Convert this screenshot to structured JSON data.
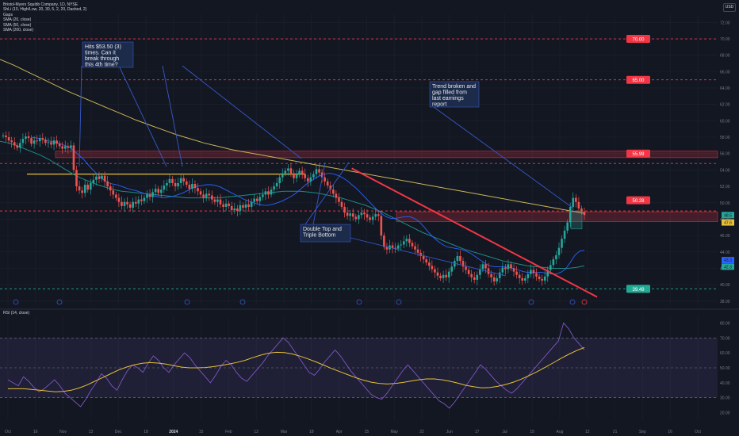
{
  "legend": {
    "title": "Bristol-Myers Squibb Company, 1D, NYSE",
    "line1": "ShLi (10, High/Low, 20, 30, 5, 2, 20, Dashed, 2)",
    "line2": "Gaps",
    "line3": "SMA (20, close)",
    "line4": "SMA (50, close)",
    "line5": "SMA (200, close)"
  },
  "rsi_legend": "RSI (14, close)",
  "currency": "USD",
  "colors": {
    "background": "#131722",
    "up": "#26a69a",
    "down": "#ef5350",
    "sma20": "#2962ff",
    "sma50": "#1f8a86",
    "sma200": "#c9b458",
    "trendline": "#f23645",
    "annotation_line": "#3658c9",
    "support": "#22ab94",
    "resistance": "#f23645",
    "rsi": "#7e57c2",
    "rsi_ma": "#e7c03a"
  },
  "annotations": [
    {
      "text": "Hits  $53.50 (3) times. Can it break through this 4th time?"
    },
    {
      "text": "Trend broken and gap filled from last earnings report"
    },
    {
      "text": "Double Top and Triple Bottom"
    }
  ],
  "chart_data": [
    {
      "type": "candlestick",
      "title": "Bristol-Myers Squibb Company, 1D, NYSE",
      "x_ticks": [
        "Oct",
        "16",
        "Nov",
        "13",
        "Dec",
        "18",
        "2024",
        "15",
        "Feb",
        "12",
        "Mar",
        "18",
        "Apr",
        "15",
        "May",
        "22",
        "Jun",
        "17",
        "Jul",
        "15",
        "Aug",
        "12",
        "21",
        "Sep",
        "16",
        "Oct"
      ],
      "y_ticks": [
        38.0,
        40.0,
        42.0,
        44.0,
        46.0,
        48.0,
        50.0,
        52.0,
        54.0,
        56.0,
        58.0,
        60.0,
        62.0,
        64.0,
        66.0,
        68.0,
        70.0,
        72.0
      ],
      "ylim": [
        37.5,
        73.0
      ],
      "levels": [
        {
          "price": 70.0,
          "style": "dashed",
          "color": "#f23645"
        },
        {
          "price": 65.0,
          "style": "dashed",
          "color": "#f23645"
        },
        {
          "price": 54.8,
          "style": "dashed",
          "color": "#f23645"
        },
        {
          "price": 49.0,
          "style": "dashed",
          "color": "#f23645"
        },
        {
          "price": 39.5,
          "style": "dashed",
          "color": "#22ab94"
        },
        {
          "price": 53.5,
          "style": "solid",
          "color": "#e7c03a"
        }
      ],
      "gap_zones": [
        {
          "from": 55.5,
          "to": 56.3
        },
        {
          "from": 47.7,
          "to": 48.9
        }
      ],
      "price_markers": [
        {
          "price": 70.0,
          "text": "70.00"
        },
        {
          "price": 65.0,
          "text": "65.00"
        },
        {
          "price": 56.0,
          "text": "55.99"
        },
        {
          "price": 50.3,
          "text": "50.28"
        },
        {
          "price": 39.5,
          "text": "39.49"
        }
      ],
      "axis_badges": [
        {
          "price": 48.5,
          "text": "48.5",
          "color": "#26a69a"
        },
        {
          "price": 47.6,
          "text": "47.6",
          "color": "#e7c03a"
        },
        {
          "price": 43.0,
          "text": "43.3",
          "color": "#2962ff"
        },
        {
          "price": 42.2,
          "text": "42.3",
          "color": "#26a69a"
        }
      ],
      "closes": [
        58.2,
        58.0,
        57.6,
        57.4,
        57.0,
        56.7,
        57.3,
        57.8,
        58.1,
        57.9,
        57.2,
        57.6,
        57.5,
        57.9,
        57.7,
        57.3,
        57.4,
        57.1,
        57.6,
        57.2,
        56.9,
        56.6,
        56.9,
        56.7,
        57.0,
        54.0,
        52.0,
        51.5,
        51.2,
        52.2,
        51.6,
        52.4,
        52.8,
        53.2,
        52.9,
        53.3,
        52.6,
        52.0,
        51.5,
        51.0,
        50.6,
        50.1,
        49.6,
        50.1,
        49.8,
        49.4,
        50.1,
        49.9,
        50.4,
        50.2,
        50.6,
        51.0,
        50.7,
        51.3,
        51.7,
        51.2,
        51.6,
        52.1,
        52.4,
        52.9,
        52.4,
        52.0,
        52.4,
        53.0,
        52.6,
        52.2,
        51.7,
        52.3,
        51.8,
        51.4,
        51.0,
        50.6,
        51.1,
        50.9,
        50.4,
        50.1,
        50.4,
        49.8,
        49.5,
        49.9,
        49.6,
        49.1,
        49.3,
        49.0,
        49.7,
        49.4,
        49.8,
        49.5,
        50.1,
        50.5,
        50.2,
        50.7,
        51.0,
        51.4,
        51.0,
        51.6,
        52.0,
        52.4,
        53.1,
        53.6,
        53.9,
        54.2,
        53.6,
        53.0,
        53.4,
        53.9,
        53.5,
        53.0,
        52.6,
        53.1,
        53.5,
        54.1,
        53.7,
        53.1,
        52.6,
        52.1,
        51.6,
        51.1,
        50.6,
        50.1,
        49.5,
        48.8,
        48.4,
        48.7,
        48.3,
        48.0,
        48.5,
        48.8,
        48.6,
        48.2,
        47.9,
        48.3,
        48.6,
        48.4,
        46.0,
        44.6,
        44.3,
        44.8,
        44.5,
        44.4,
        44.8,
        44.9,
        45.3,
        45.6,
        45.1,
        44.7,
        44.3,
        43.9,
        43.5,
        43.1,
        42.7,
        42.3,
        41.9,
        41.5,
        41.1,
        40.8,
        41.2,
        40.9,
        41.6,
        42.2,
        42.9,
        43.5,
        42.9,
        42.2,
        41.8,
        41.3,
        40.9,
        40.6,
        41.2,
        41.9,
        42.5,
        42.0,
        41.3,
        40.9,
        40.4,
        40.8,
        41.5,
        42.1,
        41.9,
        42.5,
        42.0,
        41.6,
        41.2,
        40.8,
        40.5,
        40.8,
        41.3,
        41.8,
        41.4,
        41.0,
        40.7,
        40.5,
        41.0,
        41.8,
        42.4,
        43.1,
        43.6,
        44.5,
        45.6,
        46.6,
        47.6,
        49.5,
        50.6,
        50.1,
        49.3,
        48.9,
        48.5
      ],
      "sma20": [
        58.0,
        57.9,
        57.8,
        57.6,
        57.5,
        57.4,
        57.2,
        57.0,
        56.8,
        56.3,
        55.8,
        55.3,
        54.6,
        54.0,
        53.4,
        52.9,
        52.5,
        52.3,
        52.2,
        52.0,
        51.8,
        51.6,
        51.5,
        51.3,
        51.1,
        50.9,
        50.8,
        50.7,
        50.6,
        50.7,
        50.8,
        51.0,
        51.2,
        51.5,
        51.8,
        52.0,
        52.1,
        52.2,
        52.2,
        52.1,
        51.9,
        51.6,
        51.3,
        51.0,
        50.7,
        50.4,
        50.2,
        50.0,
        49.8,
        49.7,
        49.7,
        49.8,
        50.0,
        50.2,
        50.5,
        50.8,
        51.2,
        51.7,
        52.2,
        52.6,
        53.0,
        53.3,
        53.5,
        53.6,
        53.5,
        53.3,
        53.0,
        52.6,
        52.1,
        51.6,
        51.0,
        50.4,
        49.8,
        49.2,
        48.7,
        48.3,
        48.1,
        48.1,
        48.2,
        48.3,
        48.3,
        48.1,
        47.7,
        47.1,
        46.4,
        45.8,
        45.3,
        44.9,
        44.6,
        44.5,
        44.4,
        44.3,
        44.1,
        43.8,
        43.4,
        43.0,
        42.6,
        42.3,
        42.2,
        42.2,
        42.2,
        42.1,
        42.0,
        41.8,
        41.6,
        41.5,
        41.5,
        41.5,
        41.5,
        41.4,
        41.3,
        41.3,
        41.5,
        41.9,
        42.7,
        43.6,
        44.1,
        44.2
      ],
      "sma50": [
        57.5,
        57.3,
        57.0,
        56.6,
        56.2,
        55.8,
        55.3,
        54.7,
        54.1,
        53.5,
        53.0,
        52.6,
        52.2,
        51.9,
        51.6,
        51.4,
        51.3,
        51.2,
        51.1,
        51.0,
        50.9,
        50.8,
        50.7,
        50.6,
        50.6,
        50.6,
        50.6,
        50.6,
        50.7,
        50.8,
        50.9,
        51.0,
        51.1,
        51.2,
        51.3,
        51.4,
        51.4,
        51.4,
        51.3,
        51.2,
        51.0,
        50.8,
        50.6,
        50.3,
        50.0,
        49.7,
        49.3,
        48.9,
        48.4,
        47.9,
        47.4,
        46.9,
        46.4,
        46.0,
        45.6,
        45.2,
        44.8,
        44.4,
        44.1,
        43.8,
        43.5,
        43.2,
        42.9,
        42.7,
        42.5,
        42.3,
        42.2,
        42.1,
        42.0,
        42.0,
        42.0,
        42.1,
        42.3
      ],
      "sma200": [
        67.5,
        66.8,
        66.0,
        65.2,
        64.4,
        63.6,
        62.9,
        62.2,
        61.5,
        60.8,
        60.1,
        59.5,
        58.9,
        58.3,
        57.8,
        57.3,
        56.9,
        56.5,
        56.2,
        55.9,
        55.6,
        55.3,
        55.0,
        54.7,
        54.4,
        54.1,
        53.8,
        53.5,
        53.2,
        52.9,
        52.6,
        52.3,
        52.0,
        51.7,
        51.4,
        51.1,
        50.8,
        50.5,
        50.2,
        49.9,
        49.6,
        49.3,
        49.0,
        48.7
      ],
      "trendline": [
        {
          "x": 0.476,
          "price": 54.2
        },
        {
          "x": 0.808,
          "price": 38.5
        }
      ]
    },
    {
      "type": "line",
      "title": "RSI (14, close)",
      "y_ticks": [
        20.0,
        30.0,
        40.0,
        50.0,
        60.0,
        70.0,
        80.0
      ],
      "ylim": [
        15,
        85
      ],
      "bands": {
        "upper": 70,
        "middle": 50,
        "lower": 30
      },
      "rsi": [
        42,
        40,
        38,
        44,
        41,
        37,
        34,
        36,
        39,
        42,
        38,
        33,
        30,
        27,
        24,
        29,
        35,
        40,
        46,
        43,
        38,
        35,
        42,
        48,
        52,
        50,
        47,
        53,
        58,
        55,
        50,
        47,
        52,
        56,
        60,
        57,
        52,
        48,
        44,
        40,
        45,
        51,
        55,
        52,
        47,
        43,
        41,
        45,
        49,
        53,
        58,
        62,
        66,
        70,
        67,
        62,
        57,
        52,
        47,
        45,
        49,
        54,
        58,
        62,
        58,
        53,
        48,
        44,
        40,
        36,
        32,
        30,
        29,
        33,
        38,
        43,
        48,
        52,
        48,
        44,
        40,
        36,
        32,
        28,
        26,
        23,
        27,
        32,
        37,
        42,
        47,
        52,
        49,
        45,
        41,
        38,
        35,
        33,
        36,
        40,
        44,
        48,
        52,
        56,
        60,
        64,
        68,
        80,
        76,
        70,
        66,
        62
      ],
      "rsi_ma": [
        36,
        36,
        36,
        35.5,
        35,
        34.5,
        34,
        34.2,
        35,
        36.5,
        38.5,
        41,
        43.5,
        46,
        48.5,
        50.5,
        52,
        53,
        53.5,
        53.2,
        52.5,
        51.5,
        50.5,
        50,
        50,
        50.2,
        50.8,
        51.6,
        52.5,
        53.6,
        55,
        56.8,
        58.5,
        59.8,
        60.4,
        60.2,
        59.3,
        57.8,
        56,
        54,
        51.8,
        49.5,
        47.5,
        45.5,
        43.5,
        41.8,
        40.4,
        39.6,
        39.2,
        39.5,
        40.2,
        41.1,
        42,
        42.6,
        42.6,
        42,
        41,
        39.7,
        38.3,
        37.3,
        36.6,
        36.8,
        37.6,
        38.8,
        40.4,
        42.4,
        44.8,
        47.4,
        50.2,
        53.2,
        56.2,
        59,
        61.5,
        63.6
      ]
    }
  ]
}
